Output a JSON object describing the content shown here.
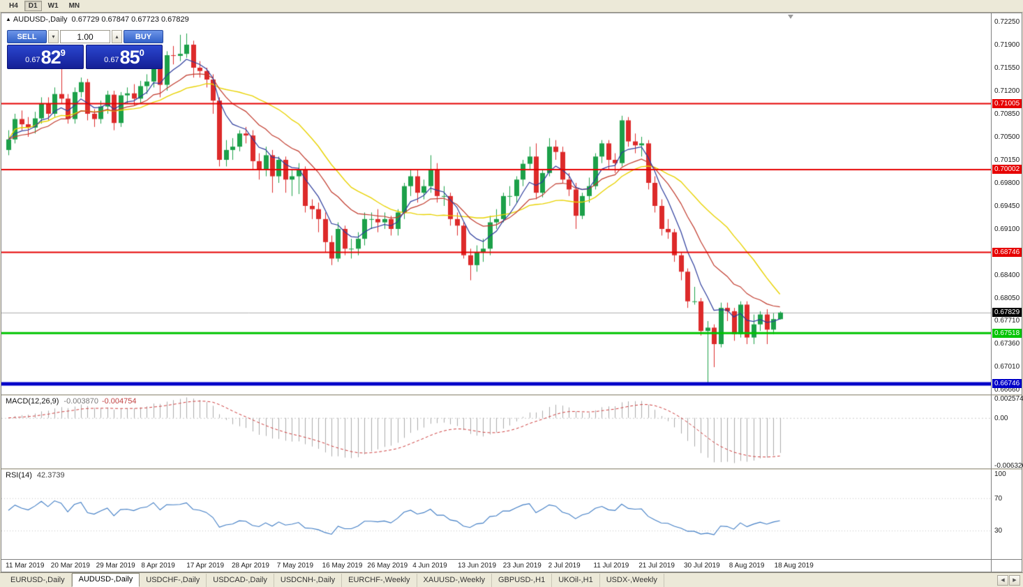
{
  "icons": {
    "triangle_up": "▲",
    "spin_down": "▾",
    "spin_up": "▴",
    "tab_prev": "◀",
    "tab_next": "▶"
  },
  "toolbar": {
    "timeframes": [
      {
        "label": "H4",
        "active": false
      },
      {
        "label": "D1",
        "active": true
      },
      {
        "label": "W1",
        "active": false
      },
      {
        "label": "MN",
        "active": false
      }
    ]
  },
  "chart": {
    "symbol_label": "AUDUSD-,Daily",
    "ohlc_text": "0.67729 0.67847 0.67723 0.67829"
  },
  "trade_panel": {
    "sell_label": "SELL",
    "buy_label": "BUY",
    "volume": "1.00",
    "sell_price": {
      "prefix": "0.67",
      "big": "82",
      "sup": "9"
    },
    "buy_price": {
      "prefix": "0.67",
      "big": "85",
      "sup": "0"
    }
  },
  "colors": {
    "bull": "#1CA049",
    "bear": "#DD2A2A",
    "current_price_line": "#ABABAB",
    "macd_hist": "#ABABAB",
    "macd_signal": "#CC3A3A",
    "rsi_line": "#3F7CC4",
    "level_dotted": "#C0C0C0",
    "badge_current": "#000000"
  },
  "chart_data": {
    "type": "candlestick",
    "symbol": "AUDUSD-",
    "timeframe": "Daily",
    "y_range": [
      0.6665,
      0.7225
    ],
    "price_ticks": [
      "0.72250",
      "0.71900",
      "0.71550",
      "0.71200",
      "0.70850",
      "0.70500",
      "0.70150",
      "0.69800",
      "0.69450",
      "0.69100",
      "0.68750",
      "0.68400",
      "0.68050",
      "0.67710",
      "0.67360",
      "0.67010",
      "0.66660"
    ],
    "x_labels": [
      "11 Mar 2019",
      "20 Mar 2019",
      "29 Mar 2019",
      "8 Apr 2019",
      "17 Apr 2019",
      "28 Apr 2019",
      "7 May 2019",
      "16 May 2019",
      "26 May 2019",
      "4 Jun 2019",
      "13 Jun 2019",
      "23 Jun 2019",
      "2 Jul 2019",
      "11 Jul 2019",
      "21 Jul 2019",
      "30 Jul 2019",
      "8 Aug 2019",
      "18 Aug 2019"
    ],
    "hlines": [
      {
        "value": 0.71005,
        "label": "0.71005",
        "color": "#E60000",
        "width": 2
      },
      {
        "value": 0.70002,
        "label": "0.70002",
        "color": "#E60000",
        "width": 2
      },
      {
        "value": 0.68746,
        "label": "0.68746",
        "color": "#E60000",
        "width": 2
      },
      {
        "value": 0.67518,
        "label": "0.67518",
        "color": "#00C400",
        "width": 3
      },
      {
        "value": 0.66746,
        "label": "0.66746",
        "color": "#0000C8",
        "width": 5
      }
    ],
    "current_price": {
      "value": 0.67829,
      "label": "0.67829"
    },
    "moving_averages": [
      {
        "kind": "sma",
        "period": 21,
        "color": "#E8D200",
        "width": 1.4,
        "name": "ma-slow-yellow"
      },
      {
        "kind": "ema",
        "period": 14,
        "color": "#C0392B",
        "width": 1.2,
        "name": "ma-mid-red"
      },
      {
        "kind": "ema",
        "period": 6,
        "color": "#2C3C9C",
        "width": 1.2,
        "name": "ma-fast-blue"
      }
    ],
    "ohlc": [
      [
        0.703,
        0.706,
        0.7022,
        0.7046
      ],
      [
        0.7046,
        0.7085,
        0.704,
        0.7077
      ],
      [
        0.7077,
        0.709,
        0.706,
        0.7069
      ],
      [
        0.7069,
        0.708,
        0.705,
        0.7064
      ],
      [
        0.7064,
        0.7088,
        0.7055,
        0.7078
      ],
      [
        0.7078,
        0.711,
        0.707,
        0.71
      ],
      [
        0.71,
        0.711,
        0.7075,
        0.7085
      ],
      [
        0.7085,
        0.7125,
        0.708,
        0.7115
      ],
      [
        0.7115,
        0.716,
        0.71,
        0.7108
      ],
      [
        0.7108,
        0.7115,
        0.707,
        0.7077
      ],
      [
        0.7077,
        0.7125,
        0.707,
        0.7118
      ],
      [
        0.7118,
        0.714,
        0.711,
        0.7133
      ],
      [
        0.7133,
        0.7138,
        0.7075,
        0.7085
      ],
      [
        0.7085,
        0.7092,
        0.7065,
        0.7077
      ],
      [
        0.7077,
        0.7105,
        0.707,
        0.7096
      ],
      [
        0.7096,
        0.712,
        0.7085,
        0.7114
      ],
      [
        0.7114,
        0.712,
        0.706,
        0.7071
      ],
      [
        0.7071,
        0.7118,
        0.7065,
        0.7113
      ],
      [
        0.7113,
        0.7125,
        0.71,
        0.7116
      ],
      [
        0.7116,
        0.713,
        0.7098,
        0.7108
      ],
      [
        0.7108,
        0.7135,
        0.71,
        0.7127
      ],
      [
        0.7127,
        0.7145,
        0.7115,
        0.7134
      ],
      [
        0.7134,
        0.7175,
        0.7125,
        0.7168
      ],
      [
        0.7168,
        0.7178,
        0.711,
        0.7129
      ],
      [
        0.7129,
        0.718,
        0.712,
        0.7174
      ],
      [
        0.7174,
        0.7188,
        0.716,
        0.7173
      ],
      [
        0.7173,
        0.7205,
        0.7165,
        0.7176
      ],
      [
        0.7176,
        0.7207,
        0.717,
        0.719
      ],
      [
        0.719,
        0.7196,
        0.714,
        0.7155
      ],
      [
        0.7155,
        0.7165,
        0.714,
        0.715
      ],
      [
        0.715,
        0.7155,
        0.7125,
        0.7137
      ],
      [
        0.7137,
        0.7145,
        0.7085,
        0.7105
      ],
      [
        0.7105,
        0.711,
        0.7005,
        0.7015
      ],
      [
        0.7015,
        0.7045,
        0.7005,
        0.703
      ],
      [
        0.703,
        0.7048,
        0.7015,
        0.7035
      ],
      [
        0.7035,
        0.706,
        0.7028,
        0.7055
      ],
      [
        0.7055,
        0.7065,
        0.704,
        0.7052
      ],
      [
        0.7052,
        0.706,
        0.7,
        0.7013
      ],
      [
        0.7013,
        0.7025,
        0.6985,
        0.7
      ],
      [
        0.7,
        0.7035,
        0.699,
        0.7022
      ],
      [
        0.7022,
        0.703,
        0.6965,
        0.699
      ],
      [
        0.699,
        0.702,
        0.698,
        0.7015
      ],
      [
        0.7015,
        0.702,
        0.6965,
        0.6985
      ],
      [
        0.6985,
        0.7,
        0.696,
        0.699
      ],
      [
        0.699,
        0.701,
        0.6963,
        0.7
      ],
      [
        0.7,
        0.7005,
        0.6935,
        0.6945
      ],
      [
        0.6945,
        0.6955,
        0.6925,
        0.694
      ],
      [
        0.694,
        0.695,
        0.6905,
        0.6925
      ],
      [
        0.6925,
        0.6935,
        0.6875,
        0.689
      ],
      [
        0.689,
        0.69,
        0.6855,
        0.6865
      ],
      [
        0.6865,
        0.692,
        0.686,
        0.691
      ],
      [
        0.691,
        0.6915,
        0.687,
        0.688
      ],
      [
        0.688,
        0.6895,
        0.6865,
        0.688
      ],
      [
        0.688,
        0.6905,
        0.687,
        0.6895
      ],
      [
        0.6895,
        0.6935,
        0.6885,
        0.6925
      ],
      [
        0.6925,
        0.6935,
        0.691,
        0.6925
      ],
      [
        0.6925,
        0.694,
        0.6905,
        0.692
      ],
      [
        0.692,
        0.6935,
        0.691,
        0.6925
      ],
      [
        0.6925,
        0.693,
        0.69,
        0.691
      ],
      [
        0.691,
        0.694,
        0.69,
        0.6935
      ],
      [
        0.6935,
        0.698,
        0.6925,
        0.6975
      ],
      [
        0.6975,
        0.7,
        0.696,
        0.699
      ],
      [
        0.699,
        0.7,
        0.695,
        0.6965
      ],
      [
        0.6965,
        0.6985,
        0.6955,
        0.6975
      ],
      [
        0.6975,
        0.7022,
        0.6965,
        0.7
      ],
      [
        0.7,
        0.701,
        0.695,
        0.696
      ],
      [
        0.696,
        0.6975,
        0.6945,
        0.696
      ],
      [
        0.696,
        0.6965,
        0.6915,
        0.6925
      ],
      [
        0.6925,
        0.6935,
        0.69,
        0.6915
      ],
      [
        0.6915,
        0.692,
        0.6865,
        0.687
      ],
      [
        0.687,
        0.688,
        0.6832,
        0.6855
      ],
      [
        0.6855,
        0.6885,
        0.6845,
        0.6875
      ],
      [
        0.6875,
        0.6895,
        0.686,
        0.688
      ],
      [
        0.688,
        0.693,
        0.687,
        0.692
      ],
      [
        0.692,
        0.694,
        0.691,
        0.6925
      ],
      [
        0.6925,
        0.6965,
        0.692,
        0.696
      ],
      [
        0.696,
        0.6975,
        0.6945,
        0.696
      ],
      [
        0.696,
        0.699,
        0.695,
        0.6985
      ],
      [
        0.6985,
        0.7015,
        0.6975,
        0.7009
      ],
      [
        0.7009,
        0.7035,
        0.7,
        0.702
      ],
      [
        0.702,
        0.704,
        0.6955,
        0.6965
      ],
      [
        0.6965,
        0.7,
        0.6958,
        0.6995
      ],
      [
        0.6995,
        0.7048,
        0.699,
        0.7035
      ],
      [
        0.7035,
        0.7045,
        0.7015,
        0.7027
      ],
      [
        0.7027,
        0.7035,
        0.698,
        0.6985
      ],
      [
        0.6985,
        0.6995,
        0.696,
        0.697
      ],
      [
        0.697,
        0.698,
        0.691,
        0.693
      ],
      [
        0.693,
        0.6965,
        0.6925,
        0.696
      ],
      [
        0.696,
        0.6988,
        0.695,
        0.6975
      ],
      [
        0.6975,
        0.7025,
        0.697,
        0.702
      ],
      [
        0.702,
        0.7045,
        0.701,
        0.704
      ],
      [
        0.704,
        0.7045,
        0.7,
        0.7015
      ],
      [
        0.7015,
        0.7025,
        0.6995,
        0.701
      ],
      [
        0.701,
        0.7082,
        0.7005,
        0.7075
      ],
      [
        0.7075,
        0.708,
        0.7035,
        0.7043
      ],
      [
        0.7043,
        0.7055,
        0.7025,
        0.7037
      ],
      [
        0.7037,
        0.705,
        0.702,
        0.704
      ],
      [
        0.704,
        0.7045,
        0.697,
        0.698
      ],
      [
        0.698,
        0.699,
        0.6935,
        0.6945
      ],
      [
        0.6945,
        0.6955,
        0.69,
        0.691
      ],
      [
        0.691,
        0.6925,
        0.6895,
        0.6905
      ],
      [
        0.6905,
        0.691,
        0.686,
        0.687
      ],
      [
        0.687,
        0.6875,
        0.6832,
        0.6845
      ],
      [
        0.6845,
        0.685,
        0.679,
        0.68
      ],
      [
        0.68,
        0.6822,
        0.6795,
        0.68
      ],
      [
        0.68,
        0.6805,
        0.6748,
        0.6755
      ],
      [
        0.6755,
        0.677,
        0.66746,
        0.676
      ],
      [
        0.676,
        0.6765,
        0.67,
        0.6735
      ],
      [
        0.6735,
        0.6798,
        0.673,
        0.679
      ],
      [
        0.679,
        0.6798,
        0.677,
        0.6785
      ],
      [
        0.6785,
        0.679,
        0.674,
        0.675
      ],
      [
        0.675,
        0.68,
        0.6745,
        0.6795
      ],
      [
        0.6795,
        0.68,
        0.6735,
        0.6745
      ],
      [
        0.6745,
        0.678,
        0.6735,
        0.6765
      ],
      [
        0.6765,
        0.6785,
        0.6755,
        0.678
      ],
      [
        0.678,
        0.6788,
        0.6735,
        0.6757
      ],
      [
        0.6757,
        0.6782,
        0.675,
        0.6773
      ],
      [
        0.67729,
        0.67847,
        0.67723,
        0.67829
      ]
    ]
  },
  "macd": {
    "label": "MACD(12,26,9)",
    "value_main": "-0.003870",
    "value_signal": "-0.004754",
    "params": [
      12,
      26,
      9
    ],
    "axis": [
      "0.002574",
      "0.00",
      "-0.006326"
    ],
    "range": [
      -0.006326,
      0.002574
    ]
  },
  "rsi": {
    "label": "RSI(14)",
    "value": "42.3739",
    "period": 14,
    "levels": [
      100,
      70,
      30
    ]
  },
  "tabs": {
    "items": [
      {
        "label": "EURUSD-,Daily",
        "active": false
      },
      {
        "label": "AUDUSD-,Daily",
        "active": true
      },
      {
        "label": "USDCHF-,Daily",
        "active": false
      },
      {
        "label": "USDCAD-,Daily",
        "active": false
      },
      {
        "label": "USDCNH-,Daily",
        "active": false
      },
      {
        "label": "EURCHF-,Weekly",
        "active": false
      },
      {
        "label": "XAUUSD-,Weekly",
        "active": false
      },
      {
        "label": "GBPUSD-,H1",
        "active": false
      },
      {
        "label": "UKOil-,H1",
        "active": false
      },
      {
        "label": "USDX-,Weekly",
        "active": false
      }
    ]
  }
}
